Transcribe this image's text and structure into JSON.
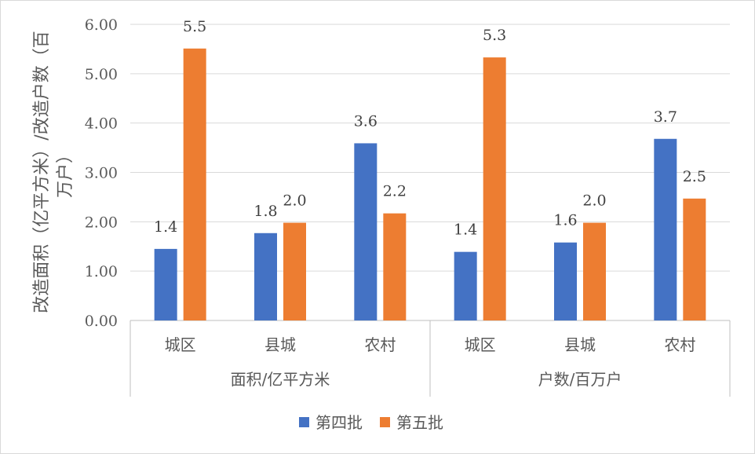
{
  "chart_data": {
    "type": "bar",
    "ylabel_lines": [
      "改造面积（亿平方米）/改造户数（百",
      "万户）"
    ],
    "ylim": [
      0,
      6
    ],
    "y_ticks": [
      "0.00",
      "1.00",
      "2.00",
      "3.00",
      "4.00",
      "5.00",
      "6.00"
    ],
    "groups": [
      {
        "label": "面积/亿平方米",
        "categories": [
          "城区",
          "县城",
          "农村"
        ]
      },
      {
        "label": "户数/百万户",
        "categories": [
          "城区",
          "县城",
          "农村"
        ]
      }
    ],
    "series": [
      {
        "name": "第四批",
        "color": "#4472C4",
        "values": [
          1.45,
          1.77,
          3.59,
          1.39,
          1.58,
          3.68
        ],
        "labels": [
          "1.4",
          "1.8",
          "3.6",
          "1.4",
          "1.6",
          "3.7"
        ]
      },
      {
        "name": "第五批",
        "color": "#ED7D31",
        "values": [
          5.51,
          1.98,
          2.17,
          5.33,
          1.98,
          2.47
        ],
        "labels": [
          "5.5",
          "2.0",
          "2.2",
          "5.3",
          "2.0",
          "2.5"
        ]
      }
    ],
    "grid": true,
    "legend_position": "bottom"
  }
}
